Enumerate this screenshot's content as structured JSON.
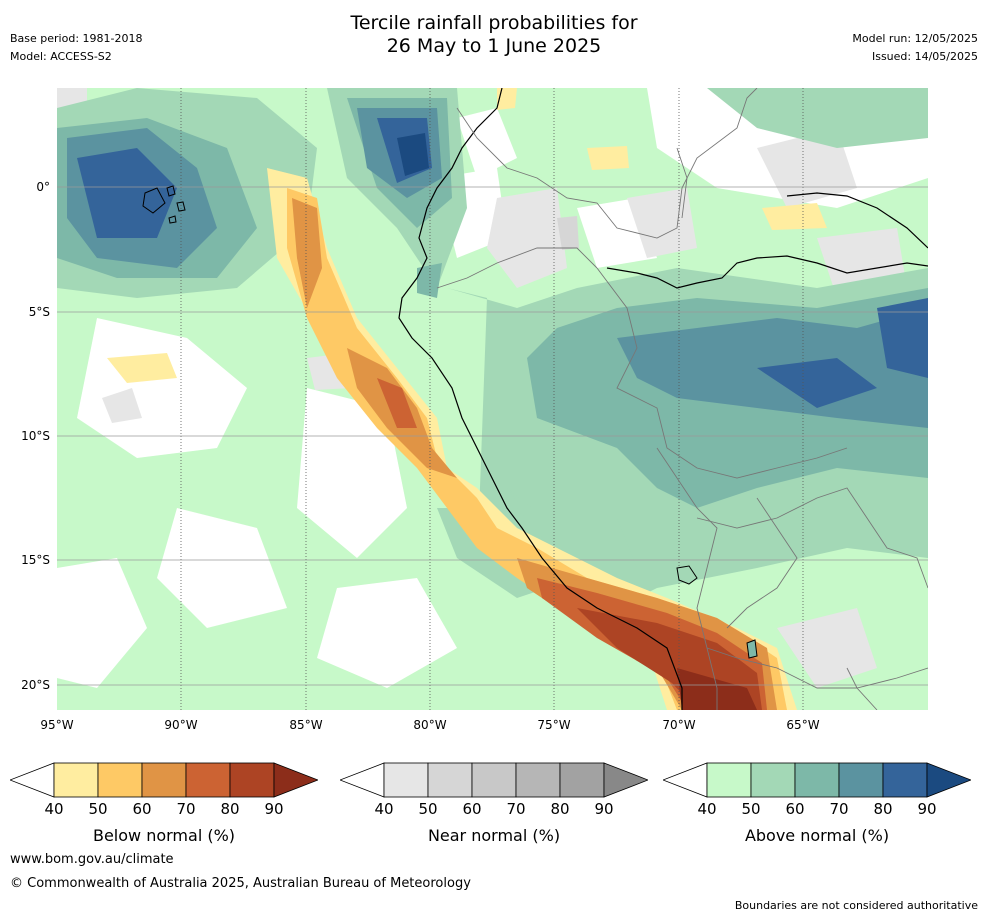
{
  "title": {
    "line1": "Tercile rainfall probabilities for",
    "line2": "26 May to 1 June 2025"
  },
  "meta": {
    "base_period": "Base period: 1981-2018",
    "model": "Model: ACCESS-S2",
    "model_run": "Model run: 12/05/2025",
    "issued": "Issued: 14/05/2025"
  },
  "map": {
    "lat_labels": [
      "0°",
      "5°S",
      "10°S",
      "15°S",
      "20°S"
    ],
    "lon_labels": [
      "95°W",
      "90°W",
      "85°W",
      "80°W",
      "75°W",
      "70°W",
      "65°W"
    ],
    "graticule": "dotted"
  },
  "colorbars": [
    {
      "label": "Below normal (%)",
      "ticks": [
        "40",
        "50",
        "60",
        "70",
        "80",
        "90"
      ],
      "colors": [
        "#ffffff",
        "#ffeda0",
        "#fec965",
        "#e09445",
        "#cc6333",
        "#ad4424",
        "#8c2d1a"
      ]
    },
    {
      "label": "Near normal (%)",
      "ticks": [
        "40",
        "50",
        "60",
        "70",
        "80",
        "90"
      ],
      "colors": [
        "#ffffff",
        "#e6e6e6",
        "#d6d6d6",
        "#c8c8c8",
        "#b6b6b6",
        "#a2a2a2",
        "#888888"
      ]
    },
    {
      "label": "Above normal (%)",
      "ticks": [
        "40",
        "50",
        "60",
        "70",
        "80",
        "90"
      ],
      "colors": [
        "#ffffff",
        "#c7f9c9",
        "#a3d8b6",
        "#7db8a8",
        "#5b93a0",
        "#34649a",
        "#1b4a80"
      ]
    }
  ],
  "footer": {
    "url": "www.bom.gov.au/climate",
    "copyright": "© Commonwealth of Australia 2025, Australian Bureau of Meteorology",
    "disclaimer": "Boundaries are not considered authoritative"
  }
}
